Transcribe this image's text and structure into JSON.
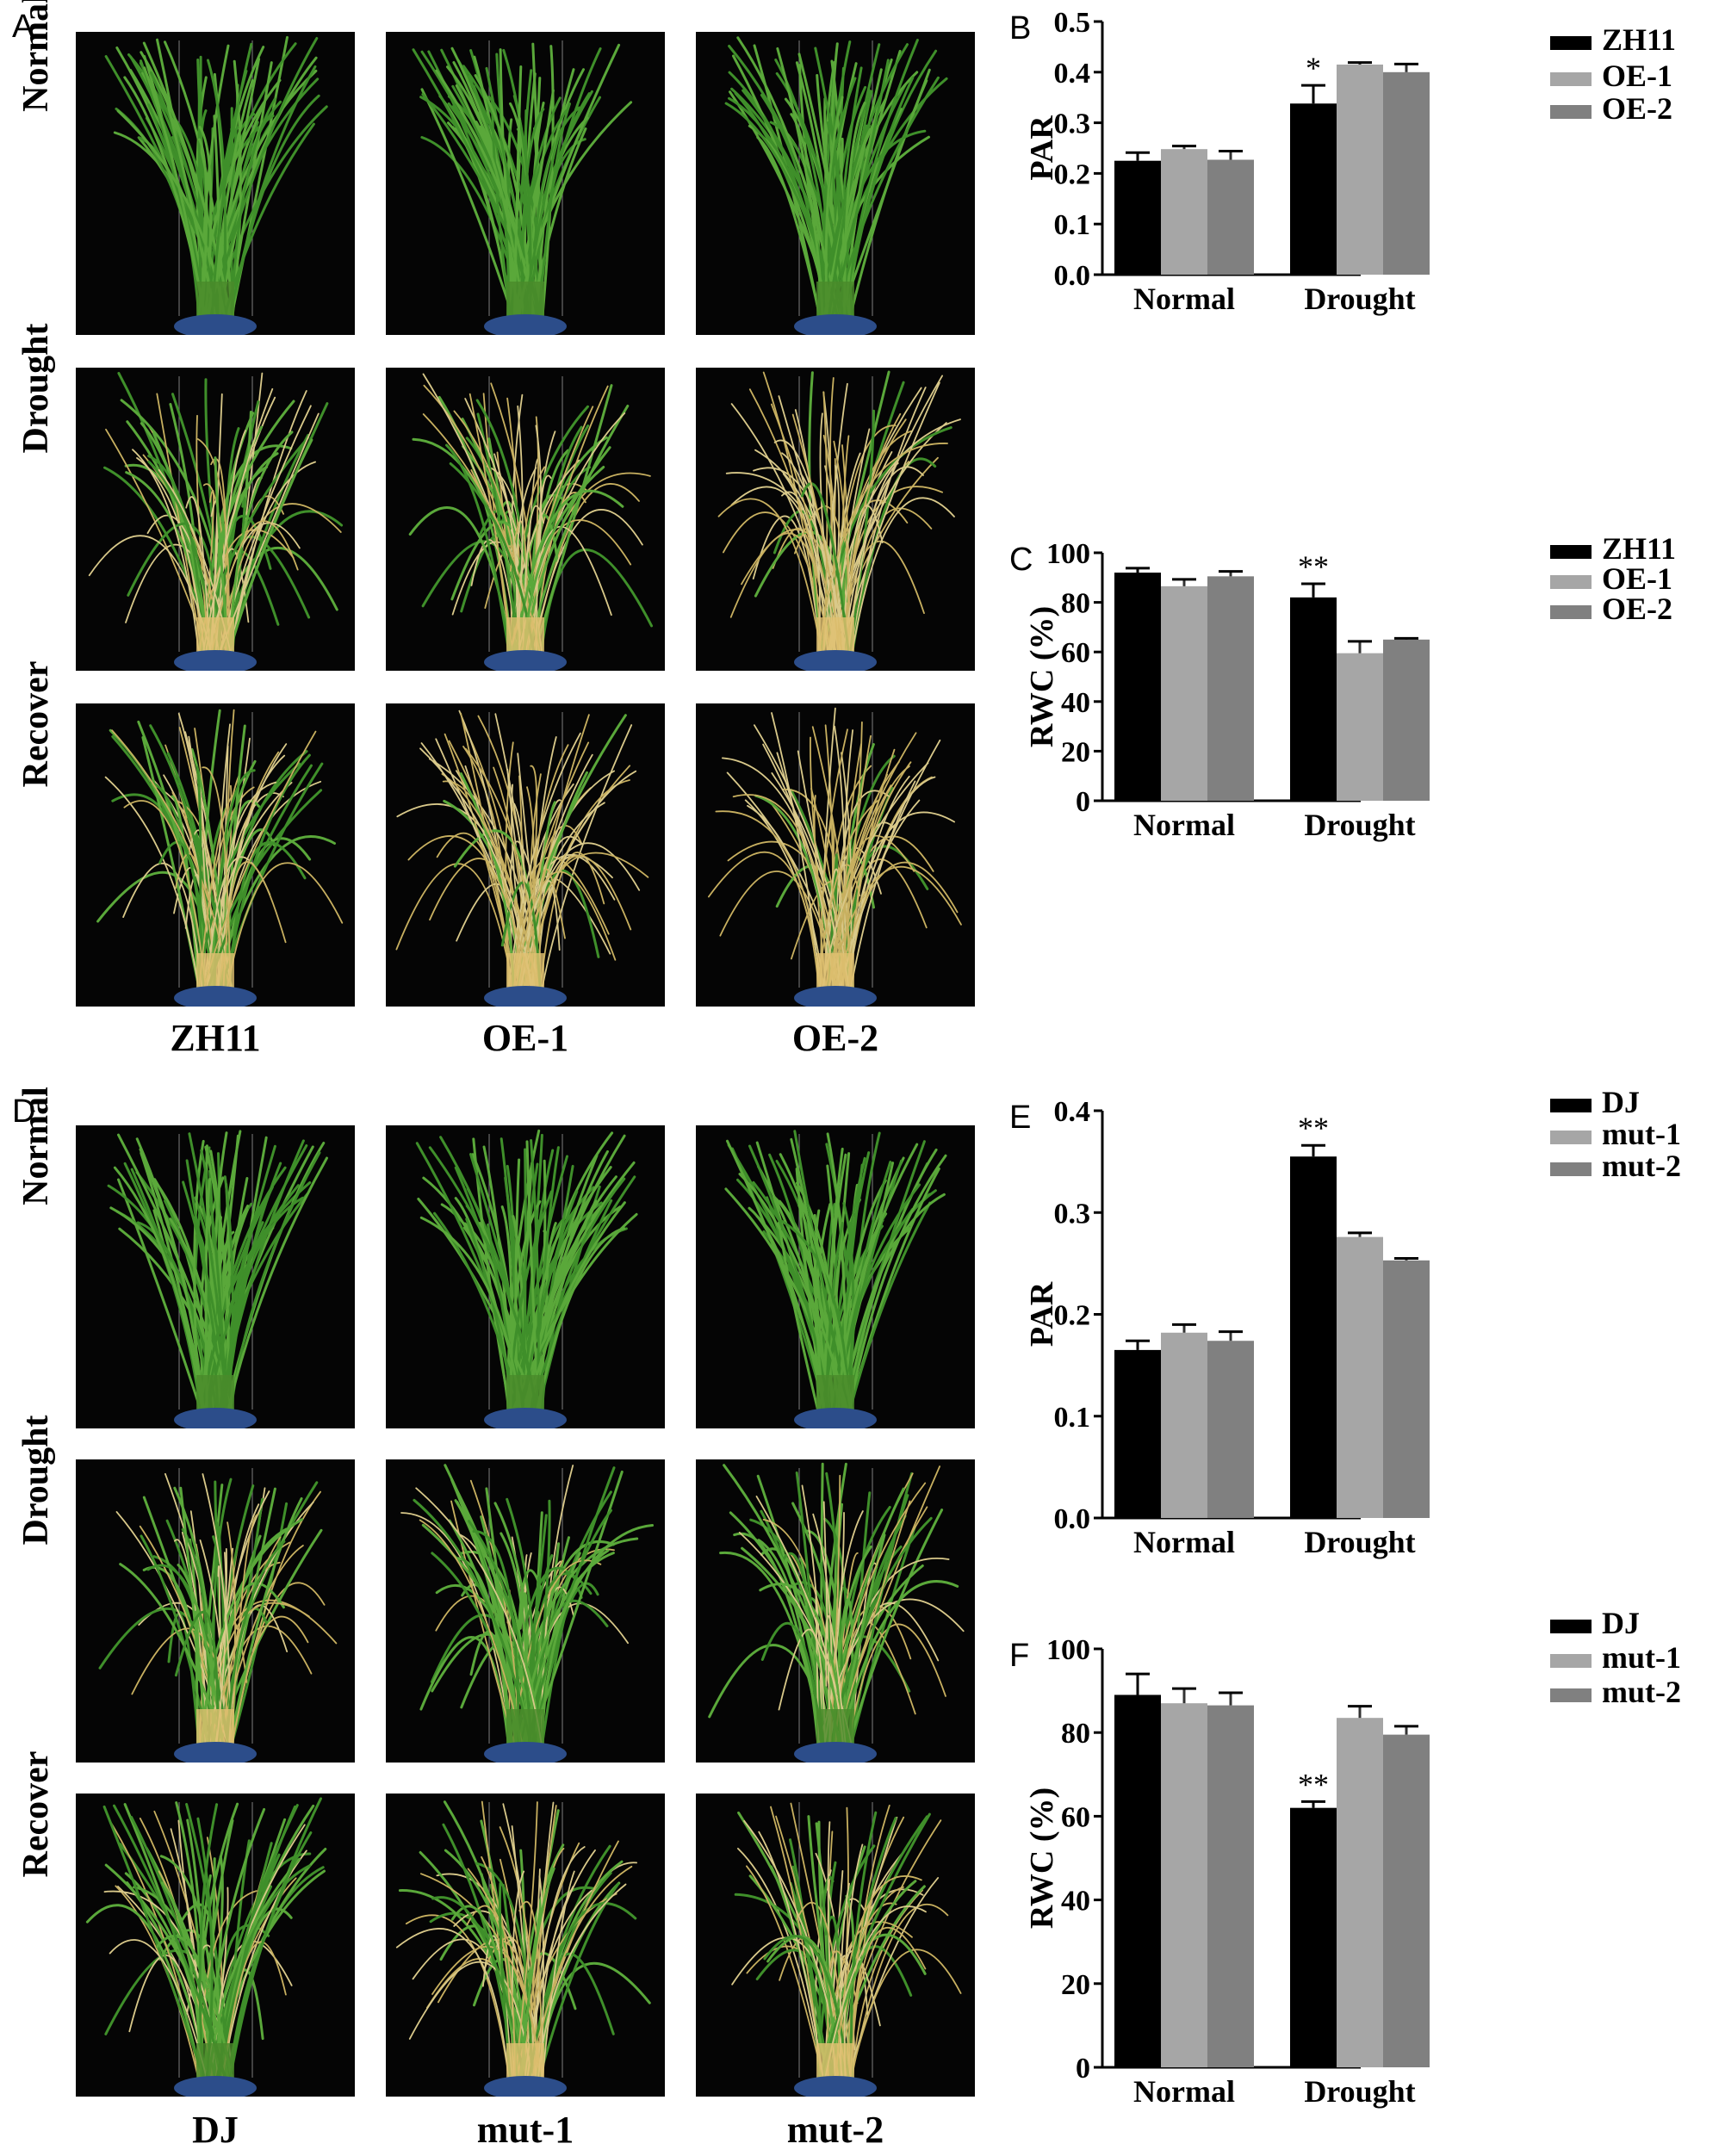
{
  "panels": [
    {
      "letter": "A",
      "rows": [
        "Normal",
        "Drought",
        "Recover"
      ],
      "columns": [
        "ZH11",
        "OE-1",
        "OE-2"
      ]
    },
    {
      "letter": "D",
      "rows": [
        "Normal",
        "Drought",
        "Recover"
      ],
      "columns": [
        "DJ",
        "mut-1",
        "mut-2"
      ]
    }
  ],
  "photo_conditions": {
    "A": [
      [
        "healthy",
        "healthy",
        "healthy"
      ],
      [
        "mixed",
        "mixed",
        "wilted"
      ],
      [
        "mixed",
        "wilted",
        "wilted"
      ]
    ],
    "D": [
      [
        "healthy",
        "healthy",
        "healthy"
      ],
      [
        "mixed",
        "green_mixed",
        "green_mixed"
      ],
      [
        "green_mixed",
        "mixed",
        "mixed"
      ]
    ]
  },
  "colors": {
    "black": "#000000",
    "light_gray": "#a6a6a6",
    "mid_gray": "#808080",
    "leaf_green": "#3f8f2a",
    "straw": "#d9c98a",
    "pot_blue": "#2c4d8a"
  },
  "chart_data": [
    {
      "panel": "B",
      "type": "bar",
      "categories": [
        "Normal",
        "Drought"
      ],
      "ylabel": "PAR",
      "ylim": [
        0,
        0.5
      ],
      "yticks": [
        "0.0",
        "0.1",
        "0.2",
        "0.3",
        "0.4",
        "0.5"
      ],
      "legend_position": "top-right",
      "series": [
        {
          "name": "ZH11",
          "color": "#000000",
          "values": [
            0.225,
            0.338
          ],
          "errors": [
            0.016,
            0.036
          ]
        },
        {
          "name": "OE-1",
          "color": "#a6a6a6",
          "values": [
            0.248,
            0.415
          ],
          "errors": [
            0.006,
            0.004
          ]
        },
        {
          "name": "OE-2",
          "color": "#808080",
          "values": [
            0.227,
            0.4
          ],
          "errors": [
            0.017,
            0.016
          ]
        }
      ],
      "annotations": [
        {
          "category": "Drought",
          "series": "ZH11",
          "text": "*"
        }
      ]
    },
    {
      "panel": "C",
      "type": "bar",
      "categories": [
        "Normal",
        "Drought"
      ],
      "ylabel": "RWC (%)",
      "ylim": [
        0,
        100
      ],
      "yticks": [
        "0",
        "20",
        "40",
        "60",
        "80",
        "100"
      ],
      "legend_position": "top-right",
      "series": [
        {
          "name": "ZH11",
          "color": "#000000",
          "values": [
            92,
            82
          ],
          "errors": [
            1.8,
            5.5
          ]
        },
        {
          "name": "OE-1",
          "color": "#a6a6a6",
          "values": [
            86.5,
            59.5
          ],
          "errors": [
            2.8,
            4.8
          ]
        },
        {
          "name": "OE-2",
          "color": "#808080",
          "values": [
            90.5,
            65
          ],
          "errors": [
            2.0,
            0.5
          ]
        }
      ],
      "annotations": [
        {
          "category": "Drought",
          "series": "ZH11",
          "text": "**"
        }
      ]
    },
    {
      "panel": "E",
      "type": "bar",
      "categories": [
        "Normal",
        "Drought"
      ],
      "ylabel": "PAR",
      "ylim": [
        0,
        0.4
      ],
      "yticks": [
        "0.0",
        "0.1",
        "0.2",
        "0.3",
        "0.4"
      ],
      "legend_position": "top-right",
      "series": [
        {
          "name": "DJ",
          "color": "#000000",
          "values": [
            0.165,
            0.355
          ],
          "errors": [
            0.009,
            0.011
          ]
        },
        {
          "name": "mut-1",
          "color": "#a6a6a6",
          "values": [
            0.182,
            0.276
          ],
          "errors": [
            0.008,
            0.004
          ]
        },
        {
          "name": "mut-2",
          "color": "#808080",
          "values": [
            0.174,
            0.253
          ],
          "errors": [
            0.009,
            0.002
          ]
        }
      ],
      "annotations": [
        {
          "category": "Drought",
          "series": "DJ",
          "text": "**"
        }
      ]
    },
    {
      "panel": "F",
      "type": "bar",
      "categories": [
        "Normal",
        "Drought"
      ],
      "ylabel": "RWC (%)",
      "ylim": [
        0,
        100
      ],
      "yticks": [
        "0",
        "20",
        "40",
        "60",
        "80",
        "100"
      ],
      "legend_position": "top-right",
      "series": [
        {
          "name": "DJ",
          "color": "#000000",
          "values": [
            89,
            62
          ],
          "errors": [
            5.0,
            1.5
          ]
        },
        {
          "name": "mut-1",
          "color": "#a6a6a6",
          "values": [
            87,
            83.5
          ],
          "errors": [
            3.5,
            2.8
          ]
        },
        {
          "name": "mut-2",
          "color": "#808080",
          "values": [
            86.5,
            79.5
          ],
          "errors": [
            3.0,
            2.0
          ]
        }
      ],
      "annotations": [
        {
          "category": "Drought",
          "series": "DJ",
          "text": "**"
        }
      ]
    }
  ]
}
